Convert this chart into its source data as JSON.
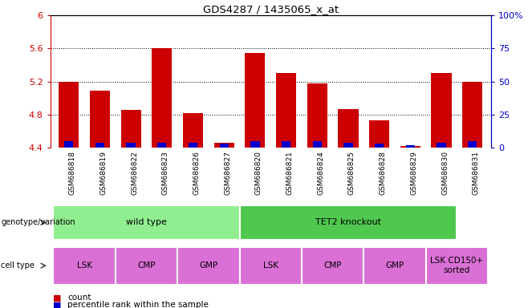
{
  "title": "GDS4287 / 1435065_x_at",
  "samples": [
    "GSM686818",
    "GSM686819",
    "GSM686822",
    "GSM686823",
    "GSM686826",
    "GSM686827",
    "GSM686820",
    "GSM686821",
    "GSM686824",
    "GSM686825",
    "GSM686828",
    "GSM686829",
    "GSM686830",
    "GSM686831"
  ],
  "count_values": [
    5.2,
    5.09,
    4.86,
    5.6,
    4.82,
    4.46,
    5.55,
    5.3,
    5.18,
    4.87,
    4.73,
    4.42,
    5.3,
    5.2
  ],
  "percentile_values": [
    5,
    4,
    4,
    4,
    4,
    3,
    5,
    5,
    5,
    4,
    3,
    2,
    4,
    5
  ],
  "bar_bottom": 4.4,
  "ylim_left": [
    4.4,
    6.0
  ],
  "ylim_right": [
    0,
    100
  ],
  "yticks_left": [
    4.4,
    4.8,
    5.2,
    5.6,
    6.0
  ],
  "ytick_labels_left": [
    "4.4",
    "4.8",
    "5.2",
    "5.6",
    "6"
  ],
  "yticks_right": [
    0,
    25,
    50,
    75,
    100
  ],
  "ytick_labels_right": [
    "0",
    "25",
    "50",
    "75",
    "100%"
  ],
  "red_color": "#cc0000",
  "blue_color": "#0000cc",
  "bar_width": 0.65,
  "genotype_groups": [
    {
      "label": "wild type",
      "start": 0,
      "end": 6,
      "color": "#90ee90"
    },
    {
      "label": "TET2 knockout",
      "start": 6,
      "end": 13,
      "color": "#50c850"
    }
  ],
  "cell_type_groups": [
    {
      "label": "LSK",
      "start": 0,
      "end": 2,
      "color": "#da70d6"
    },
    {
      "label": "CMP",
      "start": 2,
      "end": 4,
      "color": "#da70d6"
    },
    {
      "label": "GMP",
      "start": 4,
      "end": 6,
      "color": "#da70d6"
    },
    {
      "label": "LSK",
      "start": 6,
      "end": 8,
      "color": "#da70d6"
    },
    {
      "label": "CMP",
      "start": 8,
      "end": 10,
      "color": "#da70d6"
    },
    {
      "label": "GMP",
      "start": 10,
      "end": 12,
      "color": "#da70d6"
    },
    {
      "label": "LSK CD150+\nsorted",
      "start": 12,
      "end": 14,
      "color": "#da70d6"
    }
  ],
  "grid_color": "black",
  "left_axis_color": "#cc0000",
  "right_axis_color": "#0000cc",
  "background_color": "#ffffff",
  "xlabel_bg_color": "#c8c8c8",
  "geno_label": "genotype/variation",
  "cell_label": "cell type"
}
